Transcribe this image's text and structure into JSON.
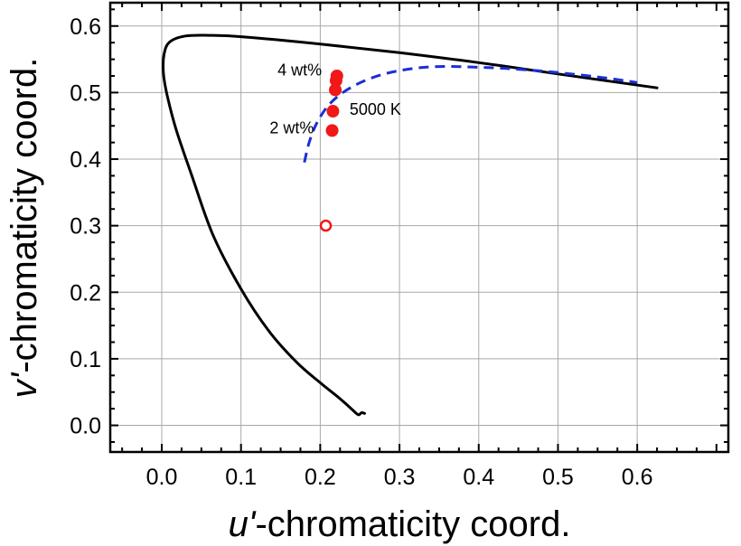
{
  "chart_data": {
    "type": "scatter",
    "xlabel_prime": "u'",
    "xlabel_rest": "-chromaticity coord.",
    "ylabel_prime": "v'",
    "ylabel_rest": "-chromaticity coord.",
    "xlim": [
      -0.065,
      0.715
    ],
    "ylim": [
      -0.04,
      0.635
    ],
    "grid": true,
    "x_ticks": [
      0.0,
      0.1,
      0.2,
      0.3,
      0.4,
      0.5,
      0.6
    ],
    "x_tick_labels": [
      "0.0",
      "0.1",
      "0.2",
      "0.3",
      "0.4",
      "0.5",
      "0.6"
    ],
    "y_ticks": [
      0.0,
      0.1,
      0.2,
      0.3,
      0.4,
      0.5,
      0.6
    ],
    "y_tick_labels": [
      "0.0",
      "0.1",
      "0.2",
      "0.3",
      "0.4",
      "0.5",
      "0.6"
    ],
    "colors": {
      "locus": "#000000",
      "planckian": "#1a2fd6",
      "points": "#f01818"
    },
    "series": [
      {
        "kind": "spectral-locus",
        "points": [
          [
            0.256,
            0.018
          ],
          [
            0.252,
            0.019
          ],
          [
            0.248,
            0.016
          ],
          [
            0.24,
            0.024
          ],
          [
            0.225,
            0.04
          ],
          [
            0.2,
            0.064
          ],
          [
            0.17,
            0.095
          ],
          [
            0.135,
            0.142
          ],
          [
            0.1,
            0.205
          ],
          [
            0.065,
            0.285
          ],
          [
            0.038,
            0.375
          ],
          [
            0.018,
            0.445
          ],
          [
            0.007,
            0.495
          ],
          [
            0.002,
            0.53
          ],
          [
            0.003,
            0.558
          ],
          [
            0.01,
            0.576
          ],
          [
            0.03,
            0.585
          ],
          [
            0.06,
            0.586
          ],
          [
            0.1,
            0.584
          ],
          [
            0.2,
            0.573
          ],
          [
            0.3,
            0.56
          ],
          [
            0.4,
            0.545
          ],
          [
            0.5,
            0.528
          ],
          [
            0.625,
            0.507
          ]
        ]
      },
      {
        "kind": "planckian-locus",
        "points": [
          [
            0.18,
            0.395
          ],
          [
            0.186,
            0.425
          ],
          [
            0.196,
            0.455
          ],
          [
            0.212,
            0.483
          ],
          [
            0.235,
            0.505
          ],
          [
            0.265,
            0.522
          ],
          [
            0.3,
            0.533
          ],
          [
            0.345,
            0.539
          ],
          [
            0.4,
            0.538
          ],
          [
            0.45,
            0.535
          ],
          [
            0.5,
            0.53
          ],
          [
            0.56,
            0.522
          ],
          [
            0.6,
            0.515
          ]
        ]
      }
    ],
    "filled_points": [
      [
        0.215,
        0.443
      ],
      [
        0.216,
        0.472
      ],
      [
        0.219,
        0.504
      ],
      [
        0.22,
        0.518
      ],
      [
        0.221,
        0.525
      ]
    ],
    "open_points": [
      [
        0.207,
        0.3
      ]
    ],
    "annotations": [
      {
        "text": "4 wt%",
        "x": 0.202,
        "y": 0.534,
        "anchor": "end"
      },
      {
        "text": "5000 K",
        "x": 0.237,
        "y": 0.475,
        "anchor": "start"
      },
      {
        "text": "2 wt%",
        "x": 0.192,
        "y": 0.447,
        "anchor": "end"
      }
    ]
  }
}
